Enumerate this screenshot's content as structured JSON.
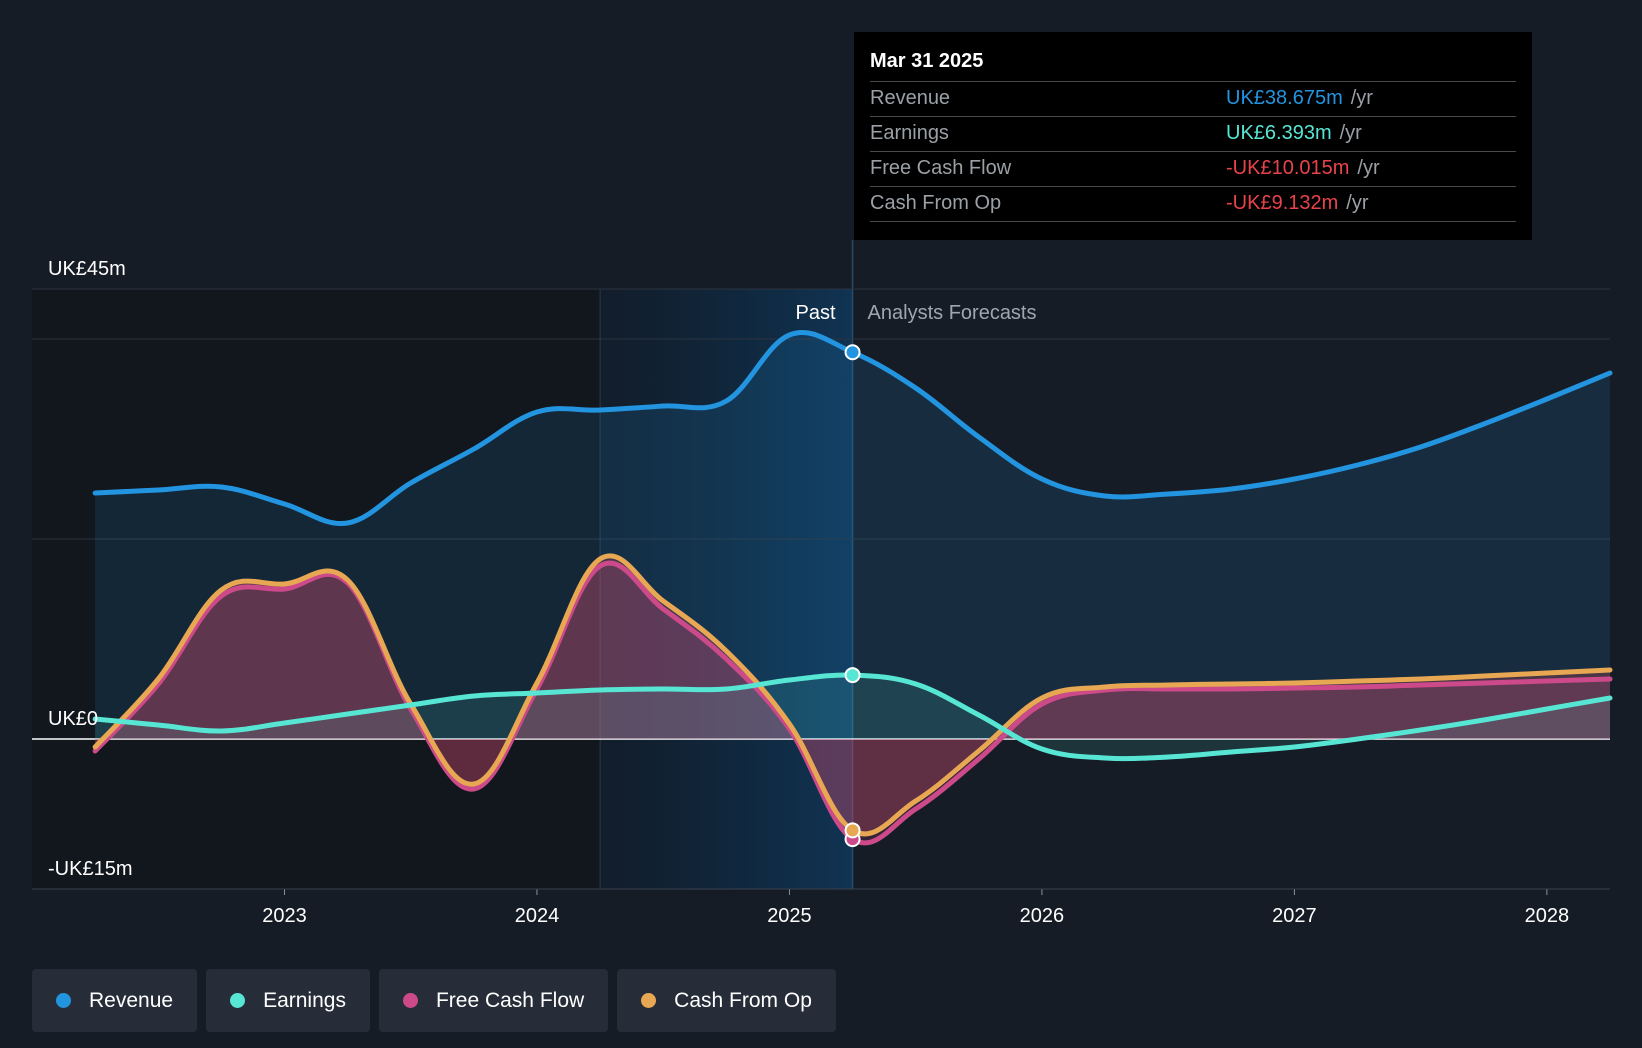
{
  "chart_data": {
    "type": "line",
    "y_axis": {
      "unit": "UK£m",
      "ylim": [
        -15,
        45
      ],
      "tick_labels": [
        "UK£45m",
        "UK£0",
        "-UK£15m"
      ],
      "tick_values": [
        45,
        0,
        -15
      ]
    },
    "x_axis": {
      "tick_labels": [
        "2023",
        "2024",
        "2025",
        "2026",
        "2027",
        "2028"
      ],
      "tick_values": [
        2023,
        2024,
        2025,
        2026,
        2027,
        2028
      ],
      "xlim": [
        2022.0,
        2028.25
      ]
    },
    "regions": {
      "past_label": "Past",
      "forecast_label": "Analysts Forecasts",
      "divider_x": 2025.25,
      "highlight_start": 2024.25
    },
    "series": [
      {
        "name": "Revenue",
        "color": "#2394df",
        "x": [
          2022.25,
          2022.5,
          2022.75,
          2023.0,
          2023.25,
          2023.5,
          2023.75,
          2024.0,
          2024.25,
          2024.5,
          2024.75,
          2025.0,
          2025.25,
          2025.5,
          2025.75,
          2026.0,
          2026.25,
          2026.5,
          2026.75,
          2027.0,
          2027.25,
          2027.5,
          2027.75,
          2028.0,
          2028.25
        ],
        "y": [
          24.6,
          24.9,
          25.2,
          23.5,
          21.6,
          25.6,
          29.0,
          32.7,
          32.9,
          33.3,
          33.8,
          40.4,
          38.675,
          35.1,
          30.2,
          26.0,
          24.3,
          24.5,
          25.0,
          26.0,
          27.4,
          29.2,
          31.5,
          34.0,
          36.6
        ]
      },
      {
        "name": "Earnings",
        "color": "#58e6d4",
        "x": [
          2022.25,
          2022.5,
          2022.75,
          2023.0,
          2023.25,
          2023.5,
          2023.75,
          2024.0,
          2024.25,
          2024.5,
          2024.75,
          2025.0,
          2025.25,
          2025.5,
          2025.75,
          2026.0,
          2026.25,
          2026.5,
          2026.75,
          2027.0,
          2027.25,
          2027.5,
          2027.75,
          2028.0,
          2028.25
        ],
        "y": [
          2.0,
          1.4,
          0.8,
          1.6,
          2.5,
          3.4,
          4.3,
          4.6,
          4.9,
          5.0,
          5.0,
          5.9,
          6.393,
          5.5,
          2.4,
          -1.0,
          -1.9,
          -1.8,
          -1.3,
          -0.8,
          0.0,
          0.9,
          1.9,
          3.0,
          4.1
        ]
      },
      {
        "name": "Free Cash Flow",
        "color": "#cc4a8a",
        "x": [
          2022.25,
          2022.5,
          2022.75,
          2023.0,
          2023.25,
          2023.5,
          2023.75,
          2024.0,
          2024.25,
          2024.5,
          2024.75,
          2025.0,
          2025.25,
          2025.5,
          2025.75,
          2026.0,
          2026.25,
          2026.5,
          2026.75,
          2027.0,
          2027.25,
          2027.5,
          2027.75,
          2028.0,
          2028.25
        ],
        "y": [
          -1.2,
          5.5,
          14.3,
          15.0,
          15.6,
          3.0,
          -5.0,
          5.0,
          17.3,
          13.0,
          8.0,
          1.0,
          -10.015,
          -7.0,
          -2.0,
          3.5,
          4.9,
          5.0,
          5.0,
          5.1,
          5.2,
          5.4,
          5.6,
          5.8,
          6.0
        ]
      },
      {
        "name": "Cash From Op",
        "color": "#e8a752",
        "x": [
          2022.25,
          2022.5,
          2022.75,
          2023.0,
          2023.25,
          2023.5,
          2023.75,
          2024.0,
          2024.25,
          2024.5,
          2024.75,
          2025.0,
          2025.25,
          2025.5,
          2025.75,
          2026.0,
          2026.25,
          2026.5,
          2026.75,
          2027.0,
          2027.25,
          2027.5,
          2027.75,
          2028.0,
          2028.25
        ],
        "y": [
          -0.8,
          6.0,
          14.9,
          15.5,
          15.9,
          3.5,
          -4.5,
          5.6,
          18.0,
          13.8,
          8.8,
          1.5,
          -9.132,
          -6.2,
          -1.2,
          4.1,
          5.2,
          5.4,
          5.5,
          5.6,
          5.8,
          6.0,
          6.3,
          6.6,
          6.9
        ]
      }
    ],
    "tooltip": {
      "date": "Mar 31 2025",
      "rows": [
        {
          "name": "Revenue",
          "value": "UK£38.675m",
          "unit": "/yr",
          "color": "#2394df"
        },
        {
          "name": "Earnings",
          "value": "UK£6.393m",
          "unit": "/yr",
          "color": "#58e6d4"
        },
        {
          "name": "Free Cash Flow",
          "value": "-UK£10.015m",
          "unit": "/yr",
          "color": "#e8434b"
        },
        {
          "name": "Cash From Op",
          "value": "-UK£9.132m",
          "unit": "/yr",
          "color": "#e8434b"
        }
      ]
    },
    "legend": [
      {
        "label": "Revenue",
        "color": "#2394df"
      },
      {
        "label": "Earnings",
        "color": "#58e6d4"
      },
      {
        "label": "Free Cash Flow",
        "color": "#cc4a8a"
      },
      {
        "label": "Cash From Op",
        "color": "#e8a752"
      }
    ]
  }
}
